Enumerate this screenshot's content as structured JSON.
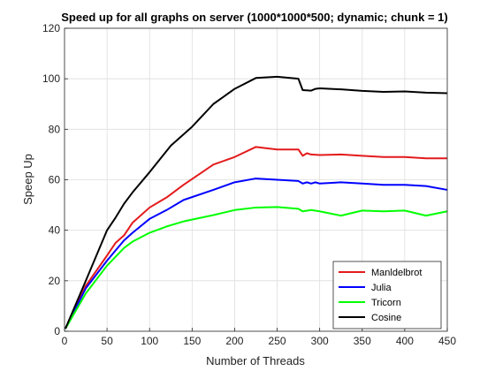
{
  "chart_data": {
    "type": "line",
    "title": "Speed up for all graphs on server (1000*1000*500; dynamic; chunk = 1)",
    "xlabel": "Number of Threads",
    "ylabel": "Speep Up",
    "xlim": [
      0,
      450
    ],
    "ylim": [
      0,
      120
    ],
    "xticks": [
      "0",
      "50",
      "100",
      "150",
      "200",
      "250",
      "300",
      "350",
      "400",
      "450"
    ],
    "yticks": [
      "0",
      "20",
      "40",
      "60",
      "80",
      "100",
      "120"
    ],
    "grid": true,
    "legend_position": "bottom-right",
    "series": [
      {
        "name": "Manldelbrot",
        "color": "#e41a1c",
        "points": [
          [
            1,
            1
          ],
          [
            25,
            18
          ],
          [
            50,
            30
          ],
          [
            60,
            35
          ],
          [
            70,
            38
          ],
          [
            80,
            43
          ],
          [
            100,
            49
          ],
          [
            120,
            53
          ],
          [
            140,
            58
          ],
          [
            175,
            66
          ],
          [
            200,
            69
          ],
          [
            225,
            73
          ],
          [
            250,
            72
          ],
          [
            275,
            72
          ],
          [
            280,
            69.5
          ],
          [
            285,
            70.5
          ],
          [
            290,
            70
          ],
          [
            300,
            69.8
          ],
          [
            325,
            70
          ],
          [
            350,
            69.5
          ],
          [
            375,
            69
          ],
          [
            400,
            69
          ],
          [
            425,
            68.5
          ],
          [
            450,
            68.5
          ]
        ]
      },
      {
        "name": "Julia",
        "color": "#0000ff",
        "points": [
          [
            1,
            1
          ],
          [
            25,
            17
          ],
          [
            50,
            28
          ],
          [
            60,
            32
          ],
          [
            70,
            36
          ],
          [
            80,
            39
          ],
          [
            100,
            44.5
          ],
          [
            120,
            48
          ],
          [
            140,
            52
          ],
          [
            175,
            56
          ],
          [
            200,
            59
          ],
          [
            225,
            60.5
          ],
          [
            250,
            60
          ],
          [
            275,
            59.5
          ],
          [
            280,
            58.5
          ],
          [
            285,
            59
          ],
          [
            290,
            58.5
          ],
          [
            295,
            59
          ],
          [
            300,
            58.5
          ],
          [
            325,
            59
          ],
          [
            350,
            58.5
          ],
          [
            375,
            58
          ],
          [
            400,
            58
          ],
          [
            425,
            57.5
          ],
          [
            450,
            56
          ]
        ]
      },
      {
        "name": "Tricorn",
        "color": "#00ff00",
        "points": [
          [
            1,
            1
          ],
          [
            25,
            15
          ],
          [
            50,
            26
          ],
          [
            60,
            29.5
          ],
          [
            70,
            33
          ],
          [
            80,
            35.5
          ],
          [
            100,
            39
          ],
          [
            120,
            41.5
          ],
          [
            140,
            43.5
          ],
          [
            175,
            46
          ],
          [
            200,
            48
          ],
          [
            225,
            49
          ],
          [
            250,
            49.2
          ],
          [
            275,
            48.5
          ],
          [
            280,
            47.5
          ],
          [
            290,
            48
          ],
          [
            300,
            47.5
          ],
          [
            325,
            45.8
          ],
          [
            350,
            47.8
          ],
          [
            375,
            47.5
          ],
          [
            400,
            47.8
          ],
          [
            425,
            45.8
          ],
          [
            450,
            47.5
          ]
        ]
      },
      {
        "name": "Cosine",
        "color": "#000000",
        "points": [
          [
            1,
            1
          ],
          [
            25,
            20
          ],
          [
            50,
            40
          ],
          [
            60,
            45
          ],
          [
            70,
            50.5
          ],
          [
            80,
            55
          ],
          [
            100,
            63
          ],
          [
            125,
            73.5
          ],
          [
            150,
            81
          ],
          [
            175,
            90
          ],
          [
            200,
            96
          ],
          [
            225,
            100.3
          ],
          [
            250,
            100.8
          ],
          [
            275,
            100
          ],
          [
            280,
            95.5
          ],
          [
            290,
            95.3
          ],
          [
            295,
            96
          ],
          [
            300,
            96.2
          ],
          [
            325,
            95.8
          ],
          [
            350,
            95.2
          ],
          [
            375,
            94.8
          ],
          [
            400,
            95
          ],
          [
            425,
            94.5
          ],
          [
            450,
            94.3
          ]
        ]
      }
    ]
  }
}
